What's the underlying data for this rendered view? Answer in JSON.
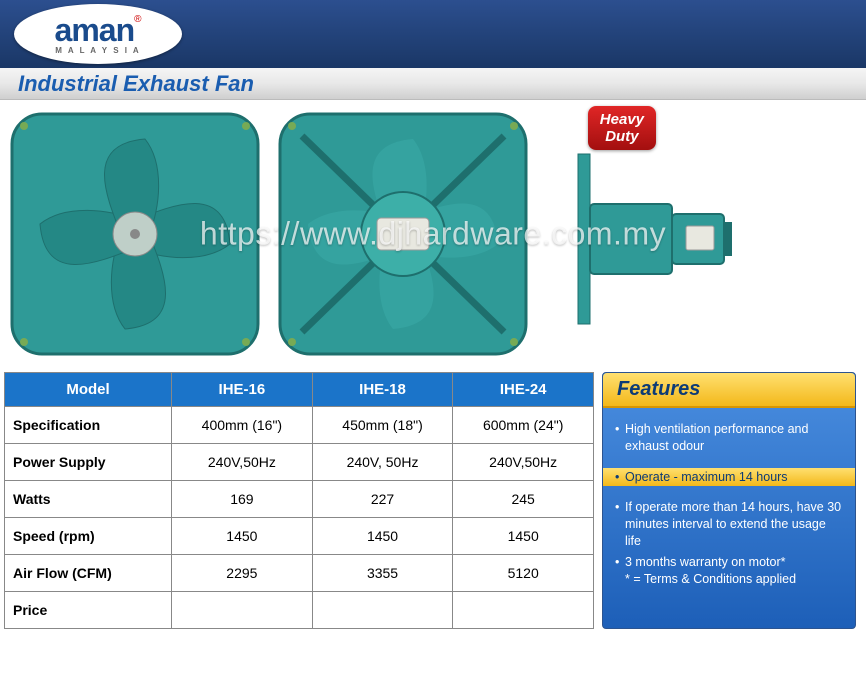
{
  "brand": {
    "name": "aman",
    "reg": "®",
    "subtitle": "M A L A Y S I A"
  },
  "title": "Industrial Exhaust Fan",
  "badge": {
    "line1": "Heavy",
    "line2": "Duty"
  },
  "watermark": "https://www.djhardware.com.my",
  "fan_color": "#2f9a97",
  "fan_color_dark": "#1e6f6d",
  "table": {
    "headers": [
      "Model",
      "IHE-16",
      "IHE-18",
      "IHE-24"
    ],
    "header_bg": "#1b74c9",
    "rows": [
      {
        "label": "Specification",
        "cells": [
          "400mm (16\")",
          "450mm (18\")",
          "600mm (24\")"
        ]
      },
      {
        "label": "Power Supply",
        "cells": [
          "240V,50Hz",
          "240V, 50Hz",
          "240V,50Hz"
        ]
      },
      {
        "label": "Watts",
        "cells": [
          "169",
          "227",
          "245"
        ]
      },
      {
        "label": "Speed (rpm)",
        "cells": [
          "1450",
          "1450",
          "1450"
        ]
      },
      {
        "label": "Air Flow (CFM)",
        "cells": [
          "2295",
          "3355",
          "5120"
        ]
      },
      {
        "label": "Price",
        "cells": [
          "",
          "",
          ""
        ]
      }
    ]
  },
  "features": {
    "title": "Features",
    "items": [
      "High ventilation performance and exhaust odour",
      "Operate - maximum 14 hours",
      "If operate more than 14 hours, have 30 minutes interval to extend the usage life",
      "3 months warranty on motor*\n* = Terms & Conditions applied"
    ],
    "sep_index": 1,
    "bg_top": "#4a8ee0",
    "bg_bottom": "#1d5fb8",
    "title_bg_top": "#ffe070",
    "title_bg_bottom": "#f3b81a"
  }
}
